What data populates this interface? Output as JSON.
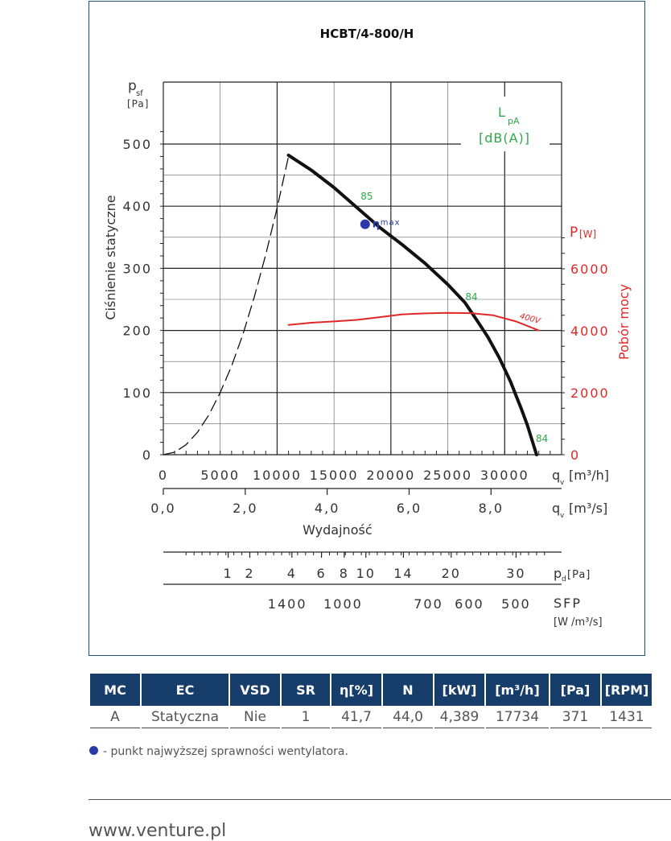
{
  "chart_data": {
    "type": "line",
    "title": "HCBT/4-800/H",
    "y_left": {
      "label": "Ciśnienie statyczne",
      "symbol": "p",
      "symbol_sub": "sf",
      "unit": "[Pa]",
      "range": [
        0,
        500
      ],
      "ticks": [
        0,
        100,
        200,
        300,
        400,
        500
      ]
    },
    "y_right": {
      "label": "Pobór mocy",
      "symbol": "P",
      "unit": "[W]",
      "range": [
        0,
        6000
      ],
      "ticks": [
        0,
        2000,
        4000,
        6000
      ],
      "ticks_text": [
        "0",
        "2000",
        "4000",
        "6000"
      ]
    },
    "x_m3h": {
      "label": "q",
      "sub": "v",
      "unit": "[m³/h]",
      "range": [
        0,
        35000
      ],
      "ticks": [
        0,
        5000,
        10000,
        15000,
        20000,
        25000,
        30000
      ],
      "ticks_text": [
        "0",
        "5000",
        "10000",
        "15000",
        "20000",
        "25000",
        "30000"
      ]
    },
    "x_m3s": {
      "label": "q",
      "sub": "v",
      "unit": "[m³/s]",
      "ticks": [
        0.0,
        2.0,
        4.0,
        6.0,
        8.0
      ],
      "ticks_text": [
        "0,0",
        "2,0",
        "4,0",
        "6,0",
        "8,0"
      ]
    },
    "x_title": "Wydajność",
    "pd_scale": {
      "label": "p",
      "sub": "d",
      "unit": "[Pa]",
      "labels": [
        "1",
        "2",
        "4",
        "6",
        "8",
        "10",
        "14",
        "20",
        "30"
      ],
      "m3h": [
        5700,
        7600,
        11300,
        13900,
        15900,
        17800,
        21100,
        25300,
        31000
      ]
    },
    "sfp_scale": {
      "label": "SFP",
      "unit": "[W /m³/s]",
      "labels": [
        "1400",
        "1000",
        "700",
        "600",
        "500"
      ],
      "m3h": [
        10900,
        15800,
        23300,
        26900,
        31000
      ]
    },
    "lpa": {
      "label": "L",
      "sub": "pA",
      "unit": "[dB(A)]"
    },
    "series": [
      {
        "kind": "pressure",
        "color": "#111111",
        "x": [
          11000,
          13000,
          15000,
          17000,
          19000,
          21000,
          23000,
          25000,
          26500,
          27500,
          28500,
          29500,
          30500,
          31500,
          32000,
          32800
        ],
        "y": [
          482,
          458,
          430,
          398,
          366,
          338,
          308,
          274,
          245,
          218,
          190,
          157,
          118,
          72,
          47,
          0
        ]
      },
      {
        "kind": "system",
        "color": "#111111",
        "x": [
          0,
          1000,
          2000,
          3000,
          4000,
          5000,
          6000,
          7000,
          8000,
          9000,
          10000,
          11000
        ],
        "y": [
          0,
          4,
          16,
          36,
          64,
          100,
          143,
          194,
          254,
          322,
          397,
          480
        ]
      },
      {
        "kind": "power",
        "name": "400V",
        "color": "#e02828",
        "x": [
          11000,
          13000,
          15000,
          17000,
          19000,
          21000,
          23000,
          25000,
          27000,
          29000,
          31000,
          33000
        ],
        "y": [
          4190,
          4260,
          4300,
          4350,
          4440,
          4530,
          4560,
          4580,
          4570,
          4500,
          4300,
          4010
        ]
      }
    ],
    "noise_labels": [
      {
        "text": "85",
        "x": 17200,
        "y": 408
      },
      {
        "text": "84",
        "x": 26400,
        "y": 246
      },
      {
        "text": "84",
        "x": 32600,
        "y": 18
      }
    ],
    "eta_max": {
      "label": "η",
      "sub": "max",
      "x": 17734,
      "y": 371,
      "color": "#2b3aa8"
    },
    "grid": true
  },
  "table": {
    "headers": [
      "MC",
      "EC",
      "VSD",
      "SR",
      "η[%]",
      "N",
      "[kW]",
      "[m³/h]",
      "[Pa]",
      "[RPM]"
    ],
    "rows": [
      [
        "A",
        "Statyczna",
        "Nie",
        "1",
        "41,7",
        "44,0",
        "4,389",
        "17734",
        "371",
        "1431"
      ]
    ]
  },
  "legend_note": "- punkt najwyższej sprawności wentylatora.",
  "footer": {
    "url": "www.venture.pl"
  },
  "colors": {
    "frame": "#1f4f85",
    "header_bg": "#173d6b",
    "noise": "#2ea84a",
    "power": "#e02828",
    "eta": "#2b3aa8"
  }
}
